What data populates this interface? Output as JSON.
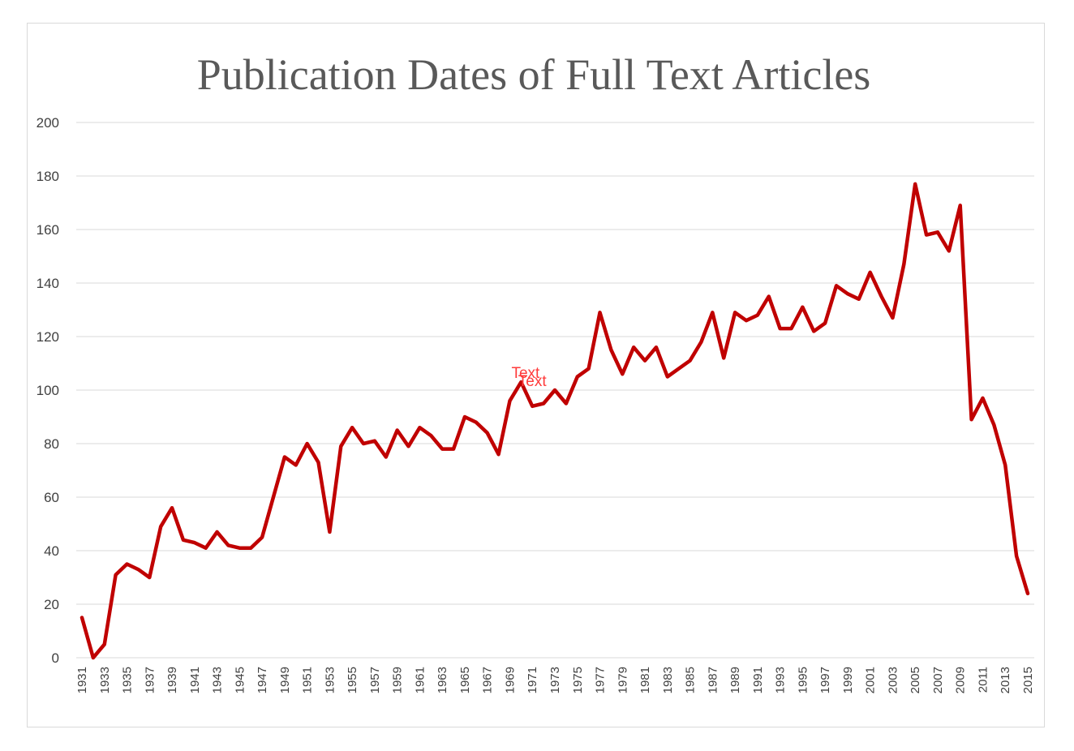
{
  "colors": {
    "line": "#c00000",
    "grid": "#d9d9d9",
    "title": "#595959",
    "annotation": "#ff3b3b"
  },
  "chart_data": {
    "type": "line",
    "title": "Publication Dates of Full Text Articles",
    "xlabel": "",
    "ylabel": "",
    "ylim": [
      0,
      200
    ],
    "yticks": [
      0,
      20,
      40,
      60,
      80,
      100,
      120,
      140,
      160,
      180,
      200
    ],
    "grid": true,
    "legend": "none",
    "x": [
      1931,
      1932,
      1933,
      1934,
      1935,
      1936,
      1937,
      1938,
      1939,
      1940,
      1941,
      1942,
      1943,
      1944,
      1945,
      1946,
      1947,
      1948,
      1949,
      1950,
      1951,
      1952,
      1953,
      1954,
      1955,
      1956,
      1957,
      1958,
      1959,
      1960,
      1961,
      1962,
      1963,
      1964,
      1965,
      1966,
      1967,
      1968,
      1969,
      1970,
      1971,
      1972,
      1973,
      1974,
      1975,
      1976,
      1977,
      1978,
      1979,
      1980,
      1981,
      1982,
      1983,
      1984,
      1985,
      1986,
      1987,
      1988,
      1989,
      1990,
      1991,
      1992,
      1993,
      1994,
      1995,
      1996,
      1997,
      1998,
      1999,
      2000,
      2001,
      2002,
      2003,
      2004,
      2005,
      2006,
      2007,
      2008,
      2009,
      2010,
      2011,
      2012,
      2013,
      2014,
      2015
    ],
    "xtick_labels": [
      "1931",
      "1933",
      "1935",
      "1937",
      "1939",
      "1941",
      "1943",
      "1945",
      "1947",
      "1949",
      "1951",
      "1953",
      "1955",
      "1957",
      "1959",
      "1961",
      "1963",
      "1965",
      "1967",
      "1969",
      "1971",
      "1973",
      "1975",
      "1977",
      "1979",
      "1981",
      "1983",
      "1985",
      "1987",
      "1989",
      "1991",
      "1993",
      "1995",
      "1997",
      "1999",
      "2001",
      "2003",
      "2005",
      "2007",
      "2009",
      "2011",
      "2013",
      "2015"
    ],
    "series": [
      {
        "name": "Full Text Articles",
        "values": [
          15,
          0,
          5,
          31,
          35,
          33,
          30,
          49,
          56,
          44,
          43,
          41,
          47,
          42,
          41,
          41,
          45,
          60,
          75,
          72,
          80,
          73,
          47,
          79,
          86,
          80,
          81,
          75,
          85,
          79,
          86,
          83,
          78,
          78,
          90,
          88,
          84,
          76,
          96,
          103,
          94,
          95,
          100,
          95,
          105,
          108,
          129,
          115,
          106,
          116,
          111,
          116,
          105,
          108,
          111,
          118,
          129,
          112,
          129,
          126,
          128,
          135,
          123,
          123,
          131,
          122,
          125,
          139,
          136,
          134,
          144,
          135,
          127,
          147,
          177,
          158,
          159,
          152,
          169,
          89,
          97,
          87,
          72,
          38,
          24
        ]
      }
    ],
    "annotations": [
      {
        "text": "Text",
        "x": 1970.4,
        "y": 104.5
      },
      {
        "text": "Text",
        "x": 1971.0,
        "y": 101.5
      }
    ]
  }
}
